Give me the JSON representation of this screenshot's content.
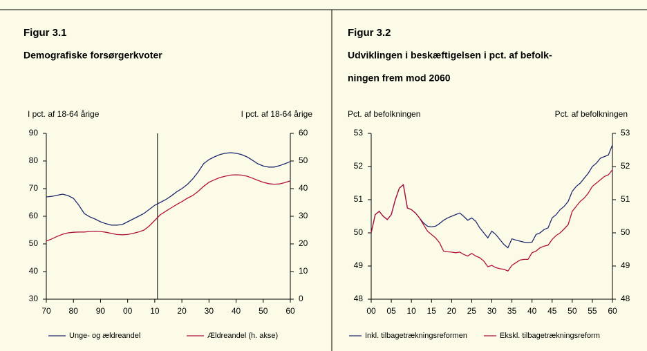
{
  "chart_data": [
    {
      "type": "line",
      "title": "Figur 3.1",
      "subtitle": "Demografiske forsørgerkvoter",
      "y_label": "I pct. af 18-64 årige",
      "y2_label": "I pct. af 18-64 årige",
      "x": [
        1970,
        1972,
        1974,
        1976,
        1978,
        1980,
        1982,
        1984,
        1986,
        1988,
        1990,
        1992,
        1994,
        1996,
        1998,
        2000,
        2002,
        2004,
        2006,
        2008,
        2010,
        2012,
        2014,
        2016,
        2018,
        2020,
        2022,
        2024,
        2026,
        2028,
        2030,
        2032,
        2034,
        2036,
        2038,
        2040,
        2042,
        2044,
        2046,
        2048,
        2050,
        2052,
        2054,
        2056,
        2058,
        2060
      ],
      "xlim": [
        1970,
        2060
      ],
      "xticks": [
        {
          "value": 1970,
          "label": "70"
        },
        {
          "value": 1980,
          "label": "80"
        },
        {
          "value": 1990,
          "label": "90"
        },
        {
          "value": 2000,
          "label": "00"
        },
        {
          "value": 2010,
          "label": "10"
        },
        {
          "value": 2020,
          "label": "20"
        },
        {
          "value": 2030,
          "label": "30"
        },
        {
          "value": 2040,
          "label": "40"
        },
        {
          "value": 2050,
          "label": "50"
        },
        {
          "value": 2060,
          "label": "60"
        }
      ],
      "ylim": [
        30,
        90
      ],
      "yticks": [
        30,
        40,
        50,
        60,
        70,
        80,
        90
      ],
      "y2lim": [
        0,
        60
      ],
      "y2ticks": [
        0,
        10,
        20,
        30,
        40,
        50,
        60
      ],
      "vline": 2011,
      "series": [
        {
          "name": "Unge- og ældreandel",
          "color": "#1f2a6e",
          "values": [
            67,
            67.2,
            67.6,
            68,
            67.5,
            66.5,
            64,
            61,
            59.8,
            59,
            58,
            57.3,
            56.8,
            56.8,
            57,
            58,
            59,
            60,
            61,
            62.5,
            64,
            65,
            66,
            67.3,
            68.8,
            70,
            71.5,
            73.5,
            76,
            79,
            80.5,
            81.5,
            82.3,
            82.8,
            83,
            82.8,
            82.3,
            81.5,
            80.3,
            79,
            78.2,
            77.8,
            77.8,
            78.3,
            79,
            79.8
          ]
        },
        {
          "name": "Ældreandel (h. akse)",
          "color": "#b0103a",
          "axis": "y2",
          "values": [
            21,
            21.8,
            22.7,
            23.5,
            24,
            24.2,
            24.3,
            24.3,
            24.5,
            24.6,
            24.5,
            24.2,
            23.8,
            23.4,
            23.3,
            23.4,
            23.8,
            24.3,
            25,
            26.5,
            28.5,
            30.5,
            31.8,
            33,
            34.2,
            35.3,
            36.5,
            37.5,
            39,
            40.8,
            42.3,
            43.2,
            44,
            44.5,
            44.9,
            45,
            44.9,
            44.5,
            43.8,
            43,
            42.3,
            41.8,
            41.6,
            41.7,
            42.2,
            42.8
          ]
        }
      ]
    },
    {
      "type": "line",
      "title": "Figur 3.2",
      "subtitle": [
        "Udviklingen i beskæftigelsen i pct. af befolk-",
        "ningen frem mod 2060"
      ],
      "y_label": "Pct. af befolkningen",
      "y2_label": "Pct. af befolkningen",
      "x": [
        2000,
        2001,
        2002,
        2003,
        2004,
        2005,
        2006,
        2007,
        2008,
        2009,
        2010,
        2011,
        2012,
        2013,
        2014,
        2015,
        2016,
        2017,
        2018,
        2019,
        2020,
        2021,
        2022,
        2023,
        2024,
        2025,
        2026,
        2027,
        2028,
        2029,
        2030,
        2031,
        2032,
        2033,
        2034,
        2035,
        2036,
        2037,
        2038,
        2039,
        2040,
        2041,
        2042,
        2043,
        2044,
        2045,
        2046,
        2047,
        2048,
        2049,
        2050,
        2051,
        2052,
        2053,
        2054,
        2055,
        2056,
        2057,
        2058,
        2059,
        2060
      ],
      "xlim": [
        2000,
        2060
      ],
      "xticks": [
        {
          "value": 2000,
          "label": "00"
        },
        {
          "value": 2005,
          "label": "05"
        },
        {
          "value": 2010,
          "label": "10"
        },
        {
          "value": 2015,
          "label": "15"
        },
        {
          "value": 2020,
          "label": "20"
        },
        {
          "value": 2025,
          "label": "25"
        },
        {
          "value": 2030,
          "label": "30"
        },
        {
          "value": 2035,
          "label": "35"
        },
        {
          "value": 2040,
          "label": "40"
        },
        {
          "value": 2045,
          "label": "45"
        },
        {
          "value": 2050,
          "label": "50"
        },
        {
          "value": 2055,
          "label": "55"
        },
        {
          "value": 2060,
          "label": "60"
        }
      ],
      "ylim": [
        48,
        53
      ],
      "yticks": [
        48,
        49,
        50,
        51,
        52,
        53
      ],
      "y2lim": [
        48,
        53
      ],
      "y2ticks": [
        48,
        49,
        50,
        51,
        52,
        53
      ],
      "series": [
        {
          "name": "Inkl. tilbagetrækningsreformen",
          "color": "#1f2a6e",
          "values": [
            50.0,
            50.55,
            50.65,
            50.5,
            50.4,
            50.55,
            51.0,
            51.35,
            51.45,
            50.75,
            50.7,
            50.6,
            50.45,
            50.3,
            50.2,
            50.18,
            50.2,
            50.28,
            50.38,
            50.45,
            50.5,
            50.55,
            50.6,
            50.5,
            50.38,
            50.45,
            50.35,
            50.15,
            50.0,
            49.85,
            50.05,
            49.95,
            49.8,
            49.65,
            49.55,
            49.82,
            49.78,
            49.75,
            49.72,
            49.7,
            49.72,
            49.95,
            50.0,
            50.1,
            50.15,
            50.45,
            50.55,
            50.7,
            50.8,
            50.95,
            51.25,
            51.4,
            51.5,
            51.65,
            51.8,
            52.0,
            52.1,
            52.25,
            52.3,
            52.35,
            52.65
          ]
        },
        {
          "name": "Ekskl. tilbagetrækningsreform",
          "color": "#b0103a",
          "values": [
            50.0,
            50.55,
            50.65,
            50.5,
            50.4,
            50.55,
            51.0,
            51.35,
            51.45,
            50.75,
            50.7,
            50.6,
            50.45,
            50.25,
            50.05,
            49.95,
            49.85,
            49.7,
            49.45,
            49.43,
            49.42,
            49.4,
            49.42,
            49.35,
            49.3,
            49.38,
            49.3,
            49.25,
            49.15,
            48.98,
            49.02,
            48.95,
            48.92,
            48.9,
            48.85,
            49.02,
            49.1,
            49.18,
            49.2,
            49.2,
            49.4,
            49.45,
            49.55,
            49.6,
            49.63,
            49.8,
            49.92,
            50.0,
            50.12,
            50.25,
            50.65,
            50.8,
            50.95,
            51.05,
            51.2,
            51.4,
            51.5,
            51.6,
            51.7,
            51.75,
            51.9
          ]
        }
      ]
    }
  ]
}
